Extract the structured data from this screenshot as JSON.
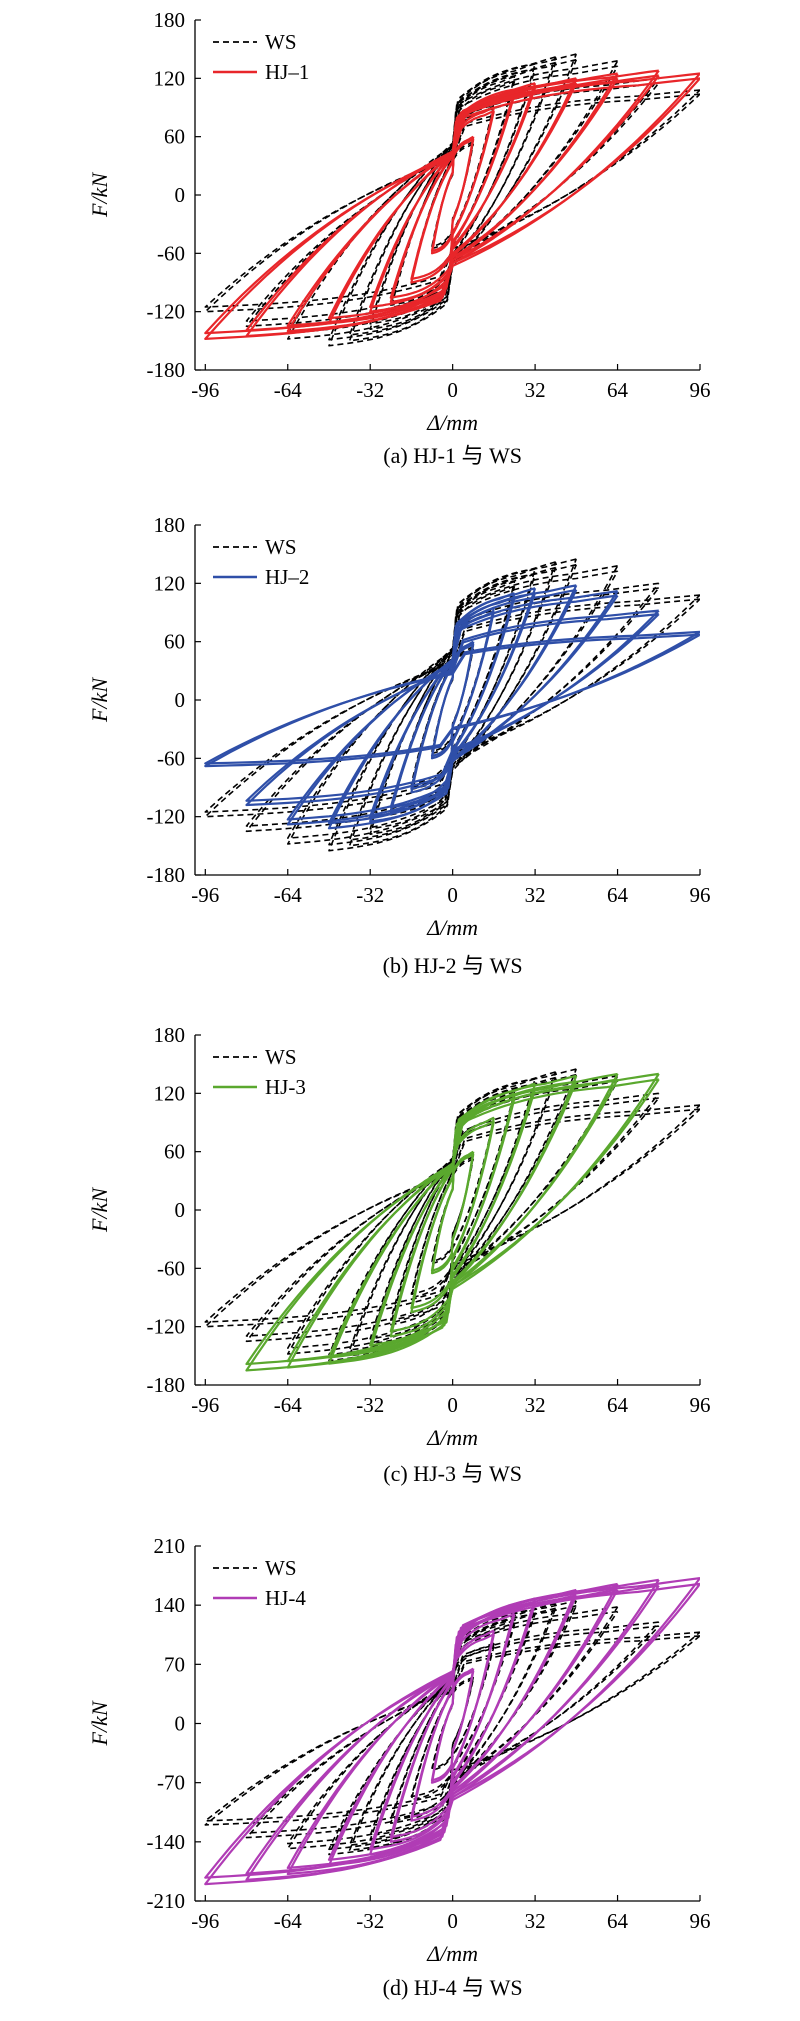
{
  "chart_data": [
    {
      "type": "line",
      "caption": "(a) HJ-1 与 WS",
      "xlabel": "Δ/mm",
      "ylabel": "F/kN",
      "xlim": [
        -100,
        96
      ],
      "ylim": [
        -180,
        180
      ],
      "xticks": [
        "-96",
        "-64",
        "-32",
        "0",
        "32",
        "64",
        "96"
      ],
      "yticks": [
        "-180",
        "-120",
        "-60",
        "0",
        "60",
        "120",
        "180"
      ],
      "legend_position": "top-left",
      "grid": false,
      "series": [
        {
          "name": "WS",
          "color": "#000000",
          "dash": true,
          "peaks": [
            [
              8,
              55,
              -8,
              -55
            ],
            [
              16,
              95,
              -16,
              -90
            ],
            [
              24,
              122,
              -24,
              -118
            ],
            [
              32,
              135,
              -32,
              -138
            ],
            [
              40,
              142,
              -40,
              -150
            ],
            [
              48,
              145,
              -48,
              -155
            ],
            [
              64,
              138,
              -64,
              -148
            ],
            [
              80,
              120,
              -80,
              -135
            ],
            [
              96,
              108,
              -96,
              -120
            ]
          ]
        },
        {
          "name": "HJ–1",
          "color": "#e8262a",
          "dash": false,
          "peaks": [
            [
              8,
              60,
              -8,
              -60
            ],
            [
              16,
              90,
              -16,
              -90
            ],
            [
              24,
              108,
              -24,
              -110
            ],
            [
              32,
              115,
              -32,
              -120
            ],
            [
              48,
              120,
              -48,
              -132
            ],
            [
              64,
              125,
              -64,
              -140
            ],
            [
              80,
              128,
              -80,
              -145
            ],
            [
              96,
              125,
              -96,
              -148
            ]
          ]
        }
      ]
    },
    {
      "type": "line",
      "caption": "(b) HJ-2 与 WS",
      "xlabel": "Δ/mm",
      "ylabel": "F/kN",
      "xlim": [
        -100,
        96
      ],
      "ylim": [
        -180,
        180
      ],
      "xticks": [
        "-96",
        "-64",
        "-32",
        "0",
        "32",
        "64",
        "96"
      ],
      "yticks": [
        "-180",
        "-120",
        "-60",
        "0",
        "60",
        "120",
        "180"
      ],
      "legend_position": "top-left",
      "grid": false,
      "series": [
        {
          "name": "WS",
          "color": "#000000",
          "dash": true,
          "peaks": [
            [
              8,
              55,
              -8,
              -55
            ],
            [
              16,
              95,
              -16,
              -90
            ],
            [
              24,
              122,
              -24,
              -118
            ],
            [
              32,
              135,
              -32,
              -138
            ],
            [
              40,
              142,
              -40,
              -150
            ],
            [
              48,
              145,
              -48,
              -155
            ],
            [
              64,
              138,
              -64,
              -148
            ],
            [
              80,
              120,
              -80,
              -135
            ],
            [
              96,
              108,
              -96,
              -120
            ]
          ]
        },
        {
          "name": "HJ–2",
          "color": "#2f4fa8",
          "dash": false,
          "peaks": [
            [
              8,
              60,
              -8,
              -60
            ],
            [
              16,
              95,
              -16,
              -95
            ],
            [
              24,
              110,
              -24,
              -115
            ],
            [
              32,
              115,
              -32,
              -125
            ],
            [
              48,
              118,
              -48,
              -132
            ],
            [
              64,
              112,
              -64,
              -128
            ],
            [
              80,
              92,
              -80,
              -108
            ],
            [
              96,
              70,
              -96,
              -68
            ]
          ]
        }
      ]
    },
    {
      "type": "line",
      "caption": "(c) HJ-3 与 WS",
      "xlabel": "Δ/mm",
      "ylabel": "F/kN",
      "xlim": [
        -100,
        96
      ],
      "ylim": [
        -180,
        180
      ],
      "xticks": [
        "-96",
        "-64",
        "-32",
        "0",
        "32",
        "64",
        "96"
      ],
      "yticks": [
        "-180",
        "-120",
        "-60",
        "0",
        "60",
        "120",
        "180"
      ],
      "legend_position": "top-left",
      "grid": false,
      "series": [
        {
          "name": "WS",
          "color": "#000000",
          "dash": true,
          "peaks": [
            [
              8,
              55,
              -8,
              -55
            ],
            [
              16,
              95,
              -16,
              -90
            ],
            [
              24,
              122,
              -24,
              -118
            ],
            [
              32,
              135,
              -32,
              -138
            ],
            [
              40,
              142,
              -40,
              -150
            ],
            [
              48,
              145,
              -48,
              -155
            ],
            [
              64,
              138,
              -64,
              -148
            ],
            [
              80,
              120,
              -80,
              -135
            ],
            [
              96,
              108,
              -96,
              -120
            ]
          ]
        },
        {
          "name": "HJ-3",
          "color": "#5aa82e",
          "dash": false,
          "peaks": [
            [
              8,
              60,
              -8,
              -65
            ],
            [
              16,
              95,
              -16,
              -105
            ],
            [
              24,
              120,
              -24,
              -130
            ],
            [
              32,
              130,
              -32,
              -145
            ],
            [
              48,
              138,
              -48,
              -158
            ],
            [
              64,
              140,
              -64,
              -162
            ],
            [
              80,
              140,
              -80,
              -165
            ]
          ]
        }
      ]
    },
    {
      "type": "line",
      "caption": "(d) HJ-4 与 WS",
      "xlabel": "Δ/mm",
      "ylabel": "F/kN",
      "xlim": [
        -100,
        96
      ],
      "ylim": [
        -210,
        210
      ],
      "xticks": [
        "-96",
        "-64",
        "-32",
        "0",
        "32",
        "64",
        "96"
      ],
      "yticks": [
        "-210",
        "-140",
        "-70",
        "0",
        "70",
        "140",
        "210"
      ],
      "legend_position": "top-left",
      "grid": false,
      "series": [
        {
          "name": "WS",
          "color": "#000000",
          "dash": true,
          "peaks": [
            [
              8,
              55,
              -8,
              -55
            ],
            [
              16,
              95,
              -16,
              -90
            ],
            [
              24,
              122,
              -24,
              -118
            ],
            [
              32,
              135,
              -32,
              -138
            ],
            [
              40,
              142,
              -40,
              -150
            ],
            [
              48,
              145,
              -48,
              -155
            ],
            [
              64,
              138,
              -64,
              -148
            ],
            [
              80,
              120,
              -80,
              -135
            ],
            [
              96,
              108,
              -96,
              -120
            ]
          ]
        },
        {
          "name": "HJ-4",
          "color": "#b03cb5",
          "dash": false,
          "peaks": [
            [
              8,
              65,
              -8,
              -70
            ],
            [
              16,
              110,
              -16,
              -115
            ],
            [
              24,
              135,
              -24,
              -140
            ],
            [
              32,
              148,
              -32,
              -155
            ],
            [
              48,
              158,
              -48,
              -168
            ],
            [
              64,
              165,
              -64,
              -178
            ],
            [
              80,
              170,
              -80,
              -185
            ],
            [
              96,
              172,
              -96,
              -190
            ]
          ]
        }
      ]
    }
  ]
}
